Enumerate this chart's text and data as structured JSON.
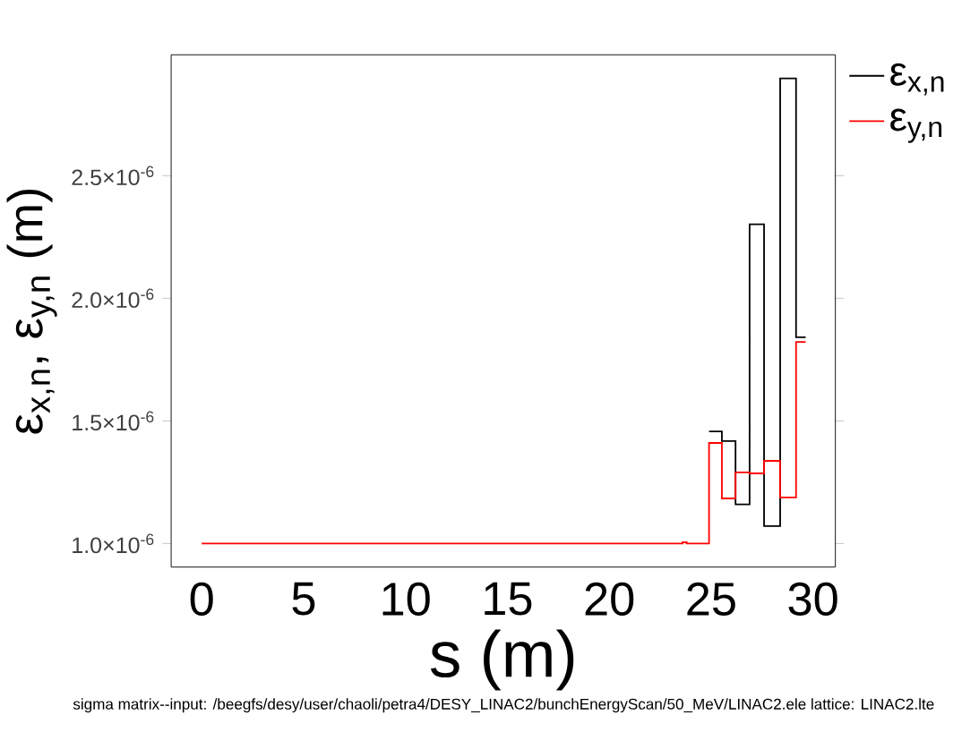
{
  "chart_data": {
    "type": "step",
    "xlabel": "s  (m)",
    "ylabel": "ε$_{x,n}$,  ε$_{y,n}$  (m)",
    "legend": "top right",
    "grid": false,
    "annotations": [
      "sigma matrix--input: /beegfs/desy/user/chaoli/petra4/DESY_LINAC2/bunchEnergyScan/50_MeV/LINAC2.ele    lattice: LINAC2.lte"
    ],
    "xlim": [
      -1.5,
      31.1
    ],
    "xticks": [
      0,
      5,
      10,
      15,
      20,
      25,
      30
    ],
    "ylim": [
      9.04e-07,
      2.993e-06
    ],
    "yticks": [
      {
        "value": 1e-06,
        "label": "1.0×10$^{-6}$"
      },
      {
        "value": 1.5e-06,
        "label": "1.5×10$^{-6}$"
      },
      {
        "value": 2e-06,
        "label": "2.0×10$^{-6}$"
      },
      {
        "value": 2.5e-06,
        "label": "2.5×10$^{-6}$"
      }
    ],
    "series": [
      {
        "name": "ε$_{x,n}$",
        "color": "#000000",
        "x": [
          24.9,
          25.53,
          26.2,
          26.89,
          27.6,
          28.39,
          29.17,
          29.64
        ],
        "values": [
          1.457e-06,
          1.418e-06,
          1.16e-06,
          2.302e-06,
          1.071e-06,
          2.897e-06,
          1.841e-06,
          1.841e-06
        ]
      },
      {
        "name": "ε$_{y,n}$",
        "color": "#ff0000",
        "x": [
          0,
          23.6,
          23.8,
          24.9,
          25.53,
          26.2,
          26.89,
          27.6,
          28.39,
          29.17,
          29.64
        ],
        "values": [
          1e-06,
          1.005e-06,
          1e-06,
          1.41e-06,
          1.184e-06,
          1.29e-06,
          1.286e-06,
          1.337e-06,
          1.188e-06,
          1.822e-06,
          1.822e-06
        ]
      }
    ]
  }
}
